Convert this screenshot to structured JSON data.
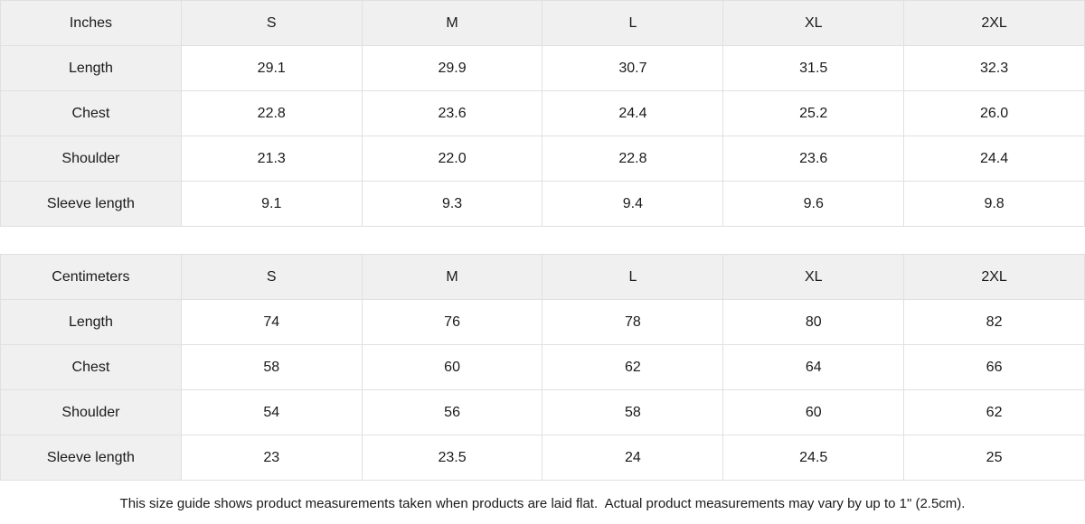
{
  "tables": [
    {
      "unit_label": "Inches",
      "columns": [
        "S",
        "M",
        "L",
        "XL",
        "2XL"
      ],
      "rows": [
        {
          "label": "Length",
          "values": [
            "29.1",
            "29.9",
            "30.7",
            "31.5",
            "32.3"
          ]
        },
        {
          "label": "Chest",
          "values": [
            "22.8",
            "23.6",
            "24.4",
            "25.2",
            "26.0"
          ]
        },
        {
          "label": "Shoulder",
          "values": [
            "21.3",
            "22.0",
            "22.8",
            "23.6",
            "24.4"
          ]
        },
        {
          "label": "Sleeve length",
          "values": [
            "9.1",
            "9.3",
            "9.4",
            "9.6",
            "9.8"
          ]
        }
      ]
    },
    {
      "unit_label": "Centimeters",
      "columns": [
        "S",
        "M",
        "L",
        "XL",
        "2XL"
      ],
      "rows": [
        {
          "label": "Length",
          "values": [
            "74",
            "76",
            "78",
            "80",
            "82"
          ]
        },
        {
          "label": "Chest",
          "values": [
            "58",
            "60",
            "62",
            "64",
            "66"
          ]
        },
        {
          "label": "Shoulder",
          "values": [
            "54",
            "56",
            "58",
            "60",
            "62"
          ]
        },
        {
          "label": "Sleeve length",
          "values": [
            "23",
            "23.5",
            "24",
            "24.5",
            "25"
          ]
        }
      ]
    }
  ],
  "footer": {
    "note": "This size guide shows product measurements taken when products are laid flat.  Actual product measurements may vary by up to 1\" (2.5cm)."
  },
  "colors": {
    "header_bg": "#f0f0f0",
    "border": "#e0e0e0",
    "text": "#1a1a1a"
  }
}
